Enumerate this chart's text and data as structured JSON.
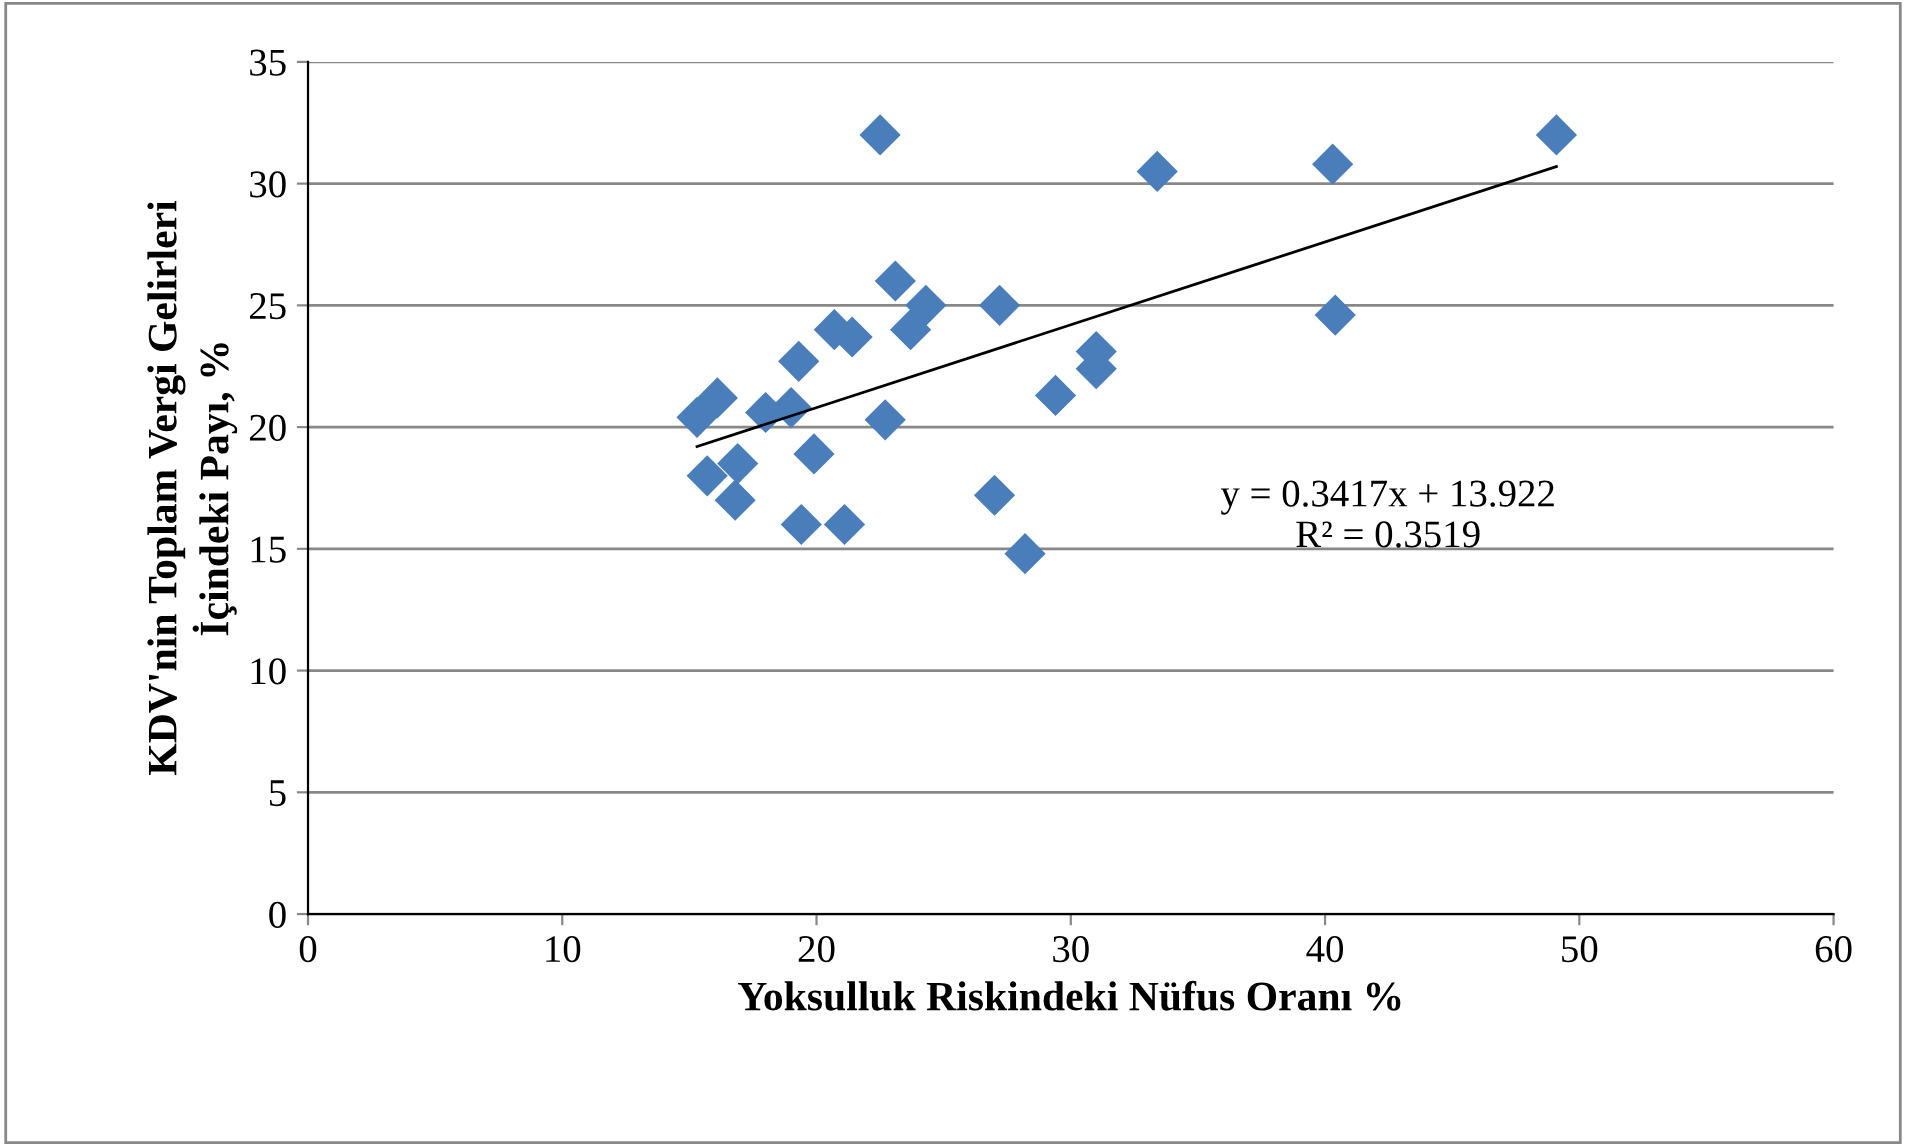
{
  "chart_data": {
    "type": "scatter",
    "xlabel": "Yoksulluk Riskindeki Nüfus Oranı %",
    "ylabel": "KDV'nin Toplam Vergi Gelirleri\nİçindeki Payı, %",
    "xlim": [
      0,
      60
    ],
    "xticks": [
      0,
      10,
      20,
      30,
      40,
      50,
      60
    ],
    "ylim": [
      0,
      35
    ],
    "yticks": [
      0,
      5,
      10,
      15,
      20,
      25,
      30,
      35
    ],
    "grid": "y",
    "marker": "diamond",
    "legend": false,
    "series": [
      {
        "color": "#4a7ebb",
        "x": [
          15.3,
          16.1,
          15.7,
          16.8,
          16.9,
          18.0,
          19.0,
          19.3,
          19.4,
          19.9,
          20.7,
          21.4,
          21.1,
          22.7,
          22.5,
          23.1,
          23.7,
          24.3,
          27.2,
          27.0,
          28.2,
          29.4,
          31.0,
          31.0,
          33.4,
          40.3,
          40.4,
          49.1
        ],
        "values": [
          20.4,
          21.2,
          18.0,
          17.0,
          18.5,
          20.6,
          20.8,
          22.7,
          16.0,
          18.9,
          24.0,
          23.7,
          16.0,
          20.3,
          32.0,
          26.0,
          24.0,
          25.0,
          25.0,
          17.2,
          14.8,
          21.3,
          23.1,
          22.4,
          30.5,
          30.8,
          24.6,
          32.0
        ]
      },
      {
        "type": "line",
        "color": "#000000",
        "marker": "none",
        "x": [
          15.3,
          49.1
        ],
        "values": [
          19.2,
          30.7
        ]
      }
    ],
    "annotations": [
      "y = 0.3417x + 13.922\nR² = 0.3519"
    ]
  }
}
